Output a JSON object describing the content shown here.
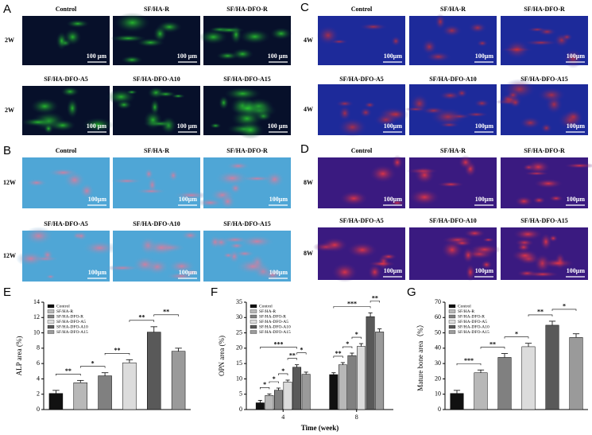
{
  "image_panels": [
    {
      "letter": "A",
      "rows": [
        {
          "label": "2W",
          "titles": [
            "Control",
            "SF/HA-R",
            "SF/HA-DFO-R"
          ],
          "scale_bar": "100 μm"
        },
        {
          "label": "2W",
          "titles": [
            "SF/HA-DFO-A5",
            "SF/HA-DFO-A10",
            "SF/HA-DFO-A15"
          ],
          "scale_bar": "100 μm"
        }
      ]
    },
    {
      "letter": "C",
      "rows": [
        {
          "label": "4W",
          "titles": [
            "Control",
            "SF/HA-R",
            "SF/HA-DFO-R"
          ],
          "scale_bar": "100μm"
        },
        {
          "label": "4W",
          "titles": [
            "SF/HA-DFO-A5",
            "SF/HA-DFO-A10",
            "SF/HA-DFO-A15"
          ],
          "scale_bar": "100μm"
        }
      ]
    },
    {
      "letter": "B",
      "rows": [
        {
          "label": "12W",
          "titles": [
            "Control",
            "SF/HA-R",
            "SF/HA-DFO-R"
          ],
          "scale_bar": "100μm"
        },
        {
          "label": "12W",
          "titles": [
            "SF/HA-DFO-A5",
            "SF/HA-DFO-A10",
            "SF/HA-DFO-A15"
          ],
          "scale_bar": "100μm"
        }
      ]
    },
    {
      "letter": "D",
      "rows": [
        {
          "label": "8W",
          "titles": [
            "Control",
            "SF/HA-R",
            "SF/HA-DFO-R"
          ],
          "scale_bar": "100μm"
        },
        {
          "label": "8W",
          "titles": [
            "SF/HA-DFO-A5",
            "SF/HA-DFO-A10",
            "SF/HA-DFO-A15"
          ],
          "scale_bar": "100μm"
        }
      ]
    }
  ],
  "chart_data": [
    {
      "type": "bar",
      "label": "E",
      "y_label": "ALP area (%)",
      "categories": [
        "Control",
        "SF/HA-R",
        "SF/HA-DFO-R",
        "SF/HA-DFO-A5",
        "SF/HA-DFO-A10",
        "SF/HA-DFO-A15"
      ],
      "colors": [
        "#111111",
        "#b8b8b8",
        "#808080",
        "#dcdcdc",
        "#595959",
        "#9a9a9a"
      ],
      "values": [
        2.1,
        3.5,
        4.4,
        6.1,
        10.1,
        7.6
      ],
      "errors": [
        0.4,
        0.3,
        0.4,
        0.4,
        0.7,
        0.4
      ],
      "ylim": [
        0,
        14
      ],
      "yticks": [
        0,
        2,
        4,
        6,
        8,
        10,
        12,
        14
      ],
      "annotations": [
        "**",
        "*",
        "**",
        "**",
        "**"
      ]
    },
    {
      "type": "grouped_bar",
      "label": "F",
      "y_label": "OPN area (%)",
      "x_label": "Time (week)",
      "categories": [
        "4",
        "8"
      ],
      "series": [
        {
          "name": "Control",
          "color": "#111111",
          "values": [
            2.2,
            11.4
          ],
          "errors": [
            0.8,
            0.6
          ]
        },
        {
          "name": "SF/HA-R",
          "color": "#b8b8b8",
          "values": [
            4.6,
            14.6
          ],
          "errors": [
            0.5,
            0.7
          ]
        },
        {
          "name": "SF/HA-DFO-R",
          "color": "#808080",
          "values": [
            6.3,
            17.6
          ],
          "errors": [
            0.7,
            0.8
          ]
        },
        {
          "name": "SF/HA-DFO-A5",
          "color": "#dcdcdc",
          "values": [
            9.0,
            20.6
          ],
          "errors": [
            0.6,
            0.9
          ]
        },
        {
          "name": "SF/HA-DFO-A10",
          "color": "#595959",
          "values": [
            13.8,
            30.3
          ],
          "errors": [
            0.8,
            1.2
          ]
        },
        {
          "name": "SF/HA-DFO-A15",
          "color": "#9a9a9a",
          "values": [
            11.5,
            25.3
          ],
          "errors": [
            0.7,
            1.0
          ]
        }
      ],
      "ylim": [
        0,
        35
      ],
      "yticks": [
        0,
        5,
        10,
        15,
        20,
        25,
        30,
        35
      ],
      "annotations": [
        "*",
        "*",
        "*",
        "**",
        "*",
        "***",
        "**",
        "*",
        "*",
        "***",
        "**"
      ]
    },
    {
      "type": "bar",
      "label": "G",
      "y_label": "Mature bone area（%）",
      "categories": [
        "Control",
        "SF/HA-R",
        "SF/HA-DFO-R",
        "SF/HA-DFO-A5",
        "SF/HA-DFO-A10",
        "SF/HA-DFO-A15"
      ],
      "colors": [
        "#111111",
        "#b8b8b8",
        "#808080",
        "#dcdcdc",
        "#595959",
        "#9a9a9a"
      ],
      "values": [
        10.5,
        24,
        34,
        41,
        55,
        47
      ],
      "errors": [
        2,
        1.8,
        2.5,
        2.2,
        2.6,
        2.4
      ],
      "ylim": [
        0,
        70
      ],
      "yticks": [
        0,
        10,
        20,
        30,
        40,
        50,
        60,
        70
      ],
      "annotations": [
        "***",
        "**",
        "*",
        "**",
        "*"
      ]
    }
  ]
}
